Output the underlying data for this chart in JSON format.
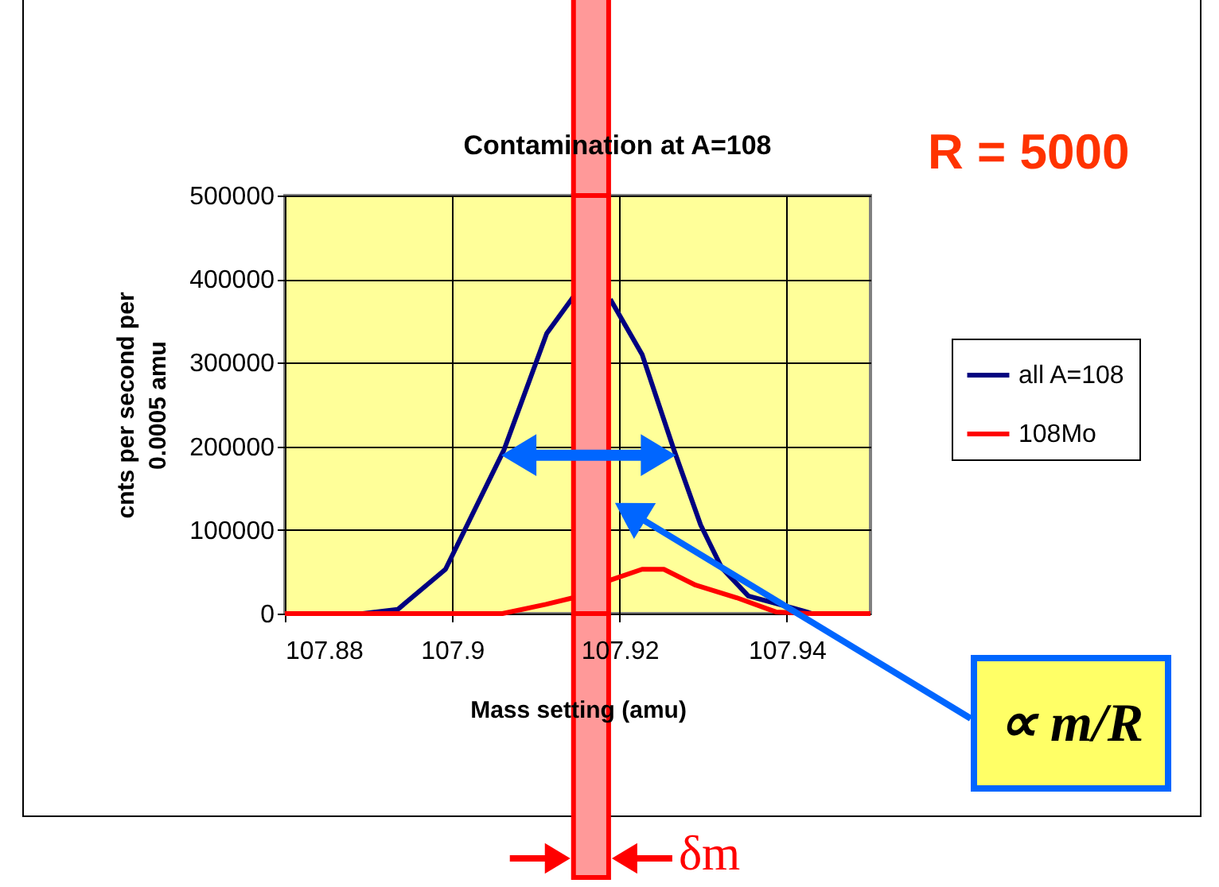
{
  "chart_data": {
    "type": "line",
    "title": "Contamination at A=108",
    "xlabel": "Mass setting (amu)",
    "ylabel": "cnts per second per\n0.0005 amu",
    "xlim": [
      107.88,
      107.95
    ],
    "xticks": [
      107.88,
      107.9,
      107.92,
      107.94
    ],
    "ylim": [
      0,
      500000
    ],
    "yticks": [
      0,
      100000,
      200000,
      300000,
      400000,
      500000
    ],
    "grid": true,
    "legend": "right",
    "series": [
      {
        "name": "all A=108",
        "color": "#000080",
        "x": [
          107.8893,
          107.8935,
          107.8992,
          107.9062,
          107.9113,
          107.9145,
          107.9165,
          107.9189,
          107.9227,
          107.9265,
          107.9297,
          107.9322,
          107.9354,
          107.9417,
          107.943
        ],
        "values": [
          0,
          5000,
          53000,
          196000,
          335000,
          379000,
          null,
          376000,
          310000,
          196000,
          106000,
          55000,
          21000,
          4000,
          0
        ]
      },
      {
        "name": "108Mo",
        "color": "#ff0000",
        "x": [
          107.88,
          107.906,
          107.9112,
          107.9145,
          107.9189,
          107.9227,
          107.9253,
          107.9291,
          107.934,
          107.9387,
          107.943,
          107.95
        ],
        "values": [
          0,
          0,
          11000,
          19000,
          40000,
          53000,
          53000,
          34000,
          19000,
          2000,
          0,
          0
        ]
      }
    ],
    "bands": [
      {
        "axis": "x",
        "from": 107.9145,
        "to": 107.9187,
        "label": "δm",
        "color": "#ff9999"
      }
    ],
    "annotations": [
      "R = 5000",
      "∝ m/R"
    ]
  }
}
